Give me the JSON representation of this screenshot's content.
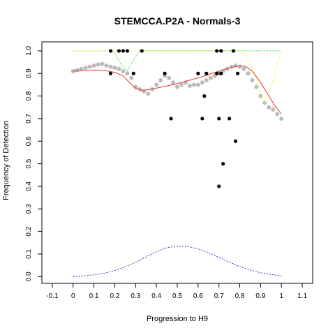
{
  "chart_data": {
    "type": "scatter",
    "title": "STEMCCA.P2A - Normals-3",
    "xlabel": "Progression to H9",
    "ylabel": "Frequency of Detection",
    "xlim": [
      -0.15,
      1.15
    ],
    "ylim": [
      -0.03,
      1.04
    ],
    "xticks": [
      "-0.1",
      "0",
      "0.1",
      "0.2",
      "0.3",
      "0.4",
      "0.5",
      "0.6",
      "0.7",
      "0.8",
      "0.9",
      "1",
      "1.1"
    ],
    "xtick_values": [
      -0.1,
      0,
      0.1,
      0.2,
      0.3,
      0.4,
      0.5,
      0.6,
      0.7,
      0.8,
      0.9,
      1.0,
      1.1
    ],
    "yticks": [
      "0.0",
      "0.1",
      "0.2",
      "0.3",
      "0.4",
      "0.5",
      "0.6",
      "0.7",
      "0.8",
      "0.9",
      "1.0"
    ],
    "ytick_values": [
      0,
      0.1,
      0.2,
      0.3,
      0.4,
      0.5,
      0.6,
      0.7,
      0.8,
      0.9,
      1.0
    ],
    "grid": false,
    "colors": {
      "points": "#000000",
      "smoothed": "#bbbbbb",
      "fit": "#e83030",
      "upper_band": "#33dd33",
      "lower_band": "#eeee33",
      "density": "#3333cc"
    },
    "series": [
      {
        "kind": "points",
        "x": [
          0.18,
          0.18,
          0.22,
          0.24,
          0.26,
          0.29,
          0.33,
          0.44,
          0.47,
          0.6,
          0.62,
          0.63,
          0.64,
          0.69,
          0.69,
          0.7,
          0.7,
          0.71,
          0.71,
          0.72,
          0.75,
          0.77,
          0.78,
          0.79
        ],
        "y": [
          1.0,
          0.9,
          1.0,
          1.0,
          1.0,
          0.9,
          1.0,
          0.9,
          0.7,
          0.9,
          0.7,
          0.8,
          0.9,
          1.0,
          0.9,
          0.4,
          0.7,
          1.0,
          0.9,
          0.5,
          0.7,
          1.0,
          0.6,
          0.9
        ]
      },
      {
        "kind": "smoothed",
        "x": [
          0.0,
          0.02,
          0.04,
          0.06,
          0.08,
          0.1,
          0.12,
          0.14,
          0.16,
          0.18,
          0.2,
          0.22,
          0.24,
          0.26,
          0.28,
          0.3,
          0.32,
          0.34,
          0.36,
          0.38,
          0.4,
          0.42,
          0.44,
          0.46,
          0.48,
          0.5,
          0.52,
          0.54,
          0.56,
          0.58,
          0.6,
          0.62,
          0.64,
          0.66,
          0.68,
          0.7,
          0.72,
          0.74,
          0.76,
          0.78,
          0.8,
          0.82,
          0.84,
          0.86,
          0.88,
          0.9,
          0.92,
          0.94,
          0.96,
          0.98,
          1.0
        ],
        "y": [
          0.91,
          0.915,
          0.92,
          0.925,
          0.93,
          0.935,
          0.94,
          0.942,
          0.935,
          0.93,
          0.925,
          0.92,
          0.91,
          0.9,
          0.88,
          0.84,
          0.83,
          0.82,
          0.81,
          0.83,
          0.85,
          0.87,
          0.89,
          0.88,
          0.86,
          0.84,
          0.85,
          0.86,
          0.845,
          0.85,
          0.85,
          0.86,
          0.87,
          0.88,
          0.89,
          0.9,
          0.91,
          0.92,
          0.93,
          0.935,
          0.93,
          0.92,
          0.9,
          0.87,
          0.84,
          0.8,
          0.77,
          0.75,
          0.74,
          0.72,
          0.7
        ]
      },
      {
        "kind": "fit",
        "x": [
          0.0,
          0.05,
          0.1,
          0.15,
          0.2,
          0.24,
          0.27,
          0.3,
          0.33,
          0.36,
          0.4,
          0.45,
          0.5,
          0.55,
          0.6,
          0.65,
          0.7,
          0.75,
          0.8,
          0.83,
          0.86,
          0.9,
          0.94,
          0.97,
          1.0
        ],
        "y": [
          0.91,
          0.913,
          0.915,
          0.914,
          0.905,
          0.89,
          0.86,
          0.835,
          0.825,
          0.828,
          0.835,
          0.845,
          0.855,
          0.868,
          0.88,
          0.895,
          0.91,
          0.925,
          0.935,
          0.93,
          0.91,
          0.86,
          0.8,
          0.755,
          0.72
        ]
      },
      {
        "kind": "upper_band",
        "x": [
          0.0,
          0.1,
          0.17,
          0.2,
          0.23,
          0.26,
          0.29,
          0.32,
          0.4,
          0.5,
          0.6,
          0.7,
          0.8,
          0.9,
          1.0
        ],
        "y": [
          1.0,
          1.0,
          1.0,
          0.99,
          0.94,
          0.91,
          0.96,
          1.0,
          1.0,
          1.0,
          1.0,
          1.0,
          1.0,
          1.0,
          1.0
        ]
      },
      {
        "kind": "lower_band",
        "x": [
          0.0,
          0.2,
          0.4,
          0.6,
          0.8,
          0.84,
          0.88,
          0.9,
          0.92,
          0.95,
          0.98,
          1.0
        ],
        "y": [
          1.0,
          1.0,
          1.0,
          1.0,
          1.0,
          0.97,
          0.88,
          0.8,
          0.77,
          0.84,
          0.94,
          1.0
        ]
      },
      {
        "kind": "density",
        "x": [
          0.0,
          0.05,
          0.1,
          0.15,
          0.2,
          0.25,
          0.3,
          0.35,
          0.4,
          0.45,
          0.5,
          0.55,
          0.6,
          0.65,
          0.7,
          0.75,
          0.8,
          0.85,
          0.9,
          0.95,
          1.0
        ],
        "y": [
          0.0,
          0.003,
          0.008,
          0.015,
          0.027,
          0.043,
          0.063,
          0.087,
          0.11,
          0.128,
          0.135,
          0.133,
          0.123,
          0.106,
          0.085,
          0.064,
          0.045,
          0.029,
          0.017,
          0.009,
          0.004
        ]
      }
    ]
  }
}
